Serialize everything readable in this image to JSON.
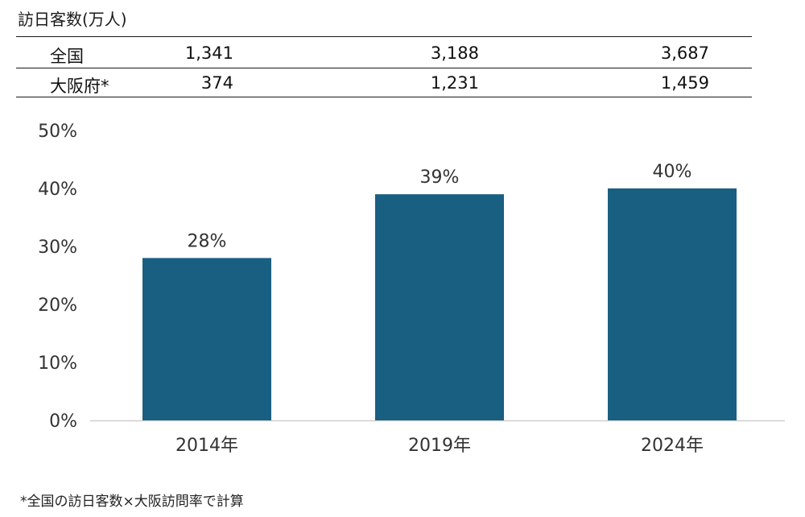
{
  "table": {
    "title": "訪日客数(万人)",
    "rows": [
      {
        "label": "全国",
        "values": [
          "1,341",
          "3,188",
          "3,687"
        ]
      },
      {
        "label": "大阪府*",
        "values": [
          "374",
          "1,231",
          "1,459"
        ]
      }
    ]
  },
  "chart_data": {
    "type": "bar",
    "categories": [
      "2014年",
      "2019年",
      "2024年"
    ],
    "values": [
      28,
      39,
      40
    ],
    "value_labels": [
      "28%",
      "39%",
      "40%"
    ],
    "ylim": [
      0,
      50
    ],
    "yticks": [
      0,
      10,
      20,
      30,
      40,
      50
    ],
    "ytick_labels": [
      "0%",
      "10%",
      "20%",
      "30%",
      "40%",
      "50%"
    ],
    "bar_color": "#185f82",
    "grid": false
  },
  "footnote": "*全国の訪日客数×大阪訪問率で計算"
}
